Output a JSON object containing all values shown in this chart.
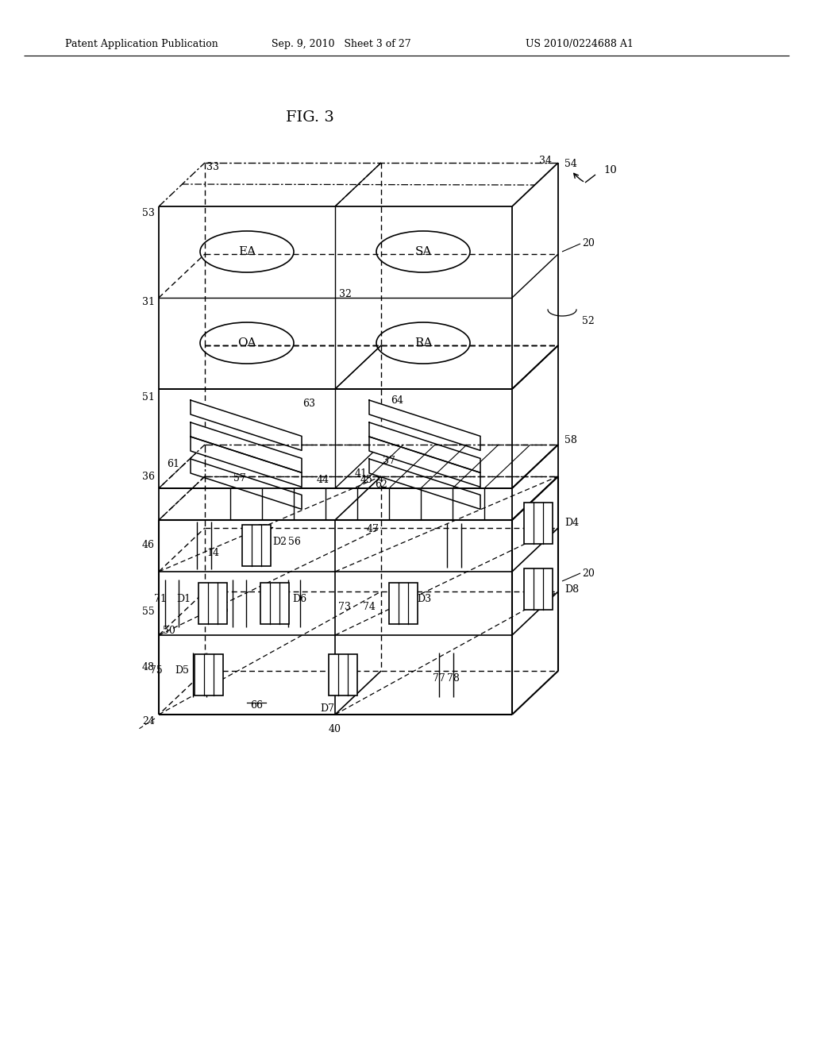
{
  "title": "FIG. 3",
  "header_left": "Patent Application Publication",
  "header_center": "Sep. 9, 2010   Sheet 3 of 27",
  "header_right": "US 2010/0224688 A1",
  "bg_color": "#ffffff"
}
